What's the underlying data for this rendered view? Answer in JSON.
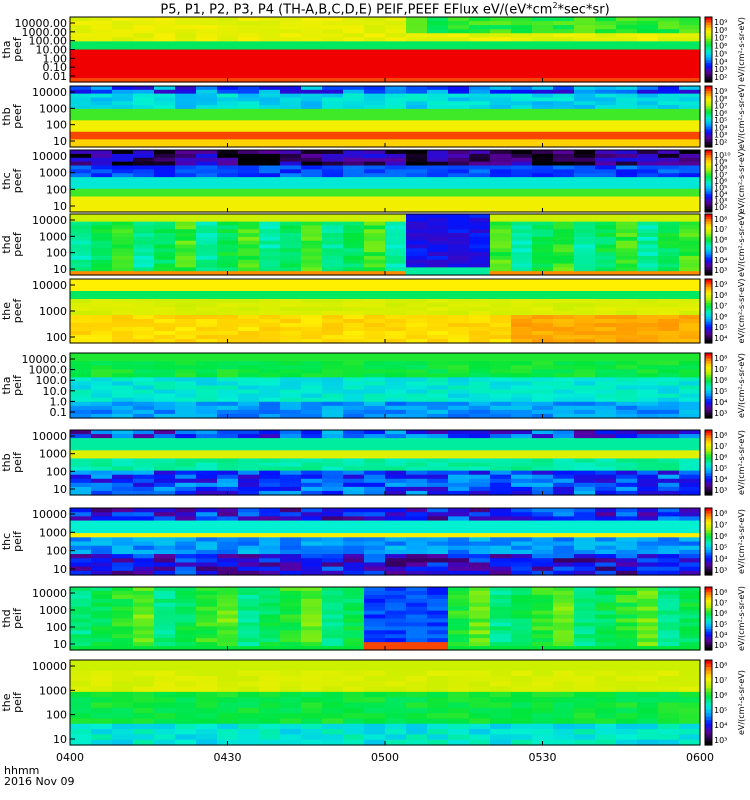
{
  "title_main": "P5, P1, P2, P3, P4 (TH-A,B,C,D,E) PEIF,PEEF EFlux eV/(eV*cm",
  "title_sup": "2",
  "title_end": "*sec*sr)",
  "x_label_top": "hhmm",
  "x_label_bottom": "2016 Nov 09",
  "colorbar_label": "[eV/(cm2-s-sr-eV)]",
  "chart_data": {
    "type": "heatmap",
    "x": {
      "ticks": [
        "0400",
        "0430",
        "0500",
        "0530",
        "0600"
      ]
    },
    "panels": [
      {
        "id": "tha-peef",
        "ylabel": [
          "tha",
          "peef"
        ],
        "yticks": [
          "10000.00",
          "1000.00",
          "100.00",
          "10.00",
          "1.00",
          "0.10",
          "0.01"
        ],
        "colorbar": [
          "10⁹",
          "10⁸",
          "10⁷",
          "10⁶",
          "10⁵",
          "10⁴",
          "10³",
          "10²"
        ],
        "cbar_label": "eV/(cm²-s-sr-eV)"
      },
      {
        "id": "thb-peef",
        "ylabel": [
          "thb",
          "peef"
        ],
        "yticks": [
          "10000",
          "1000",
          "100",
          "10"
        ],
        "colorbar": [
          "10⁹",
          "10⁸",
          "10⁷",
          "10⁶",
          "10⁵",
          "10⁴",
          "10³",
          "10²"
        ],
        "cbar_label": "eV/(cm²-s-sr-eV)"
      },
      {
        "id": "thc-peef",
        "ylabel": [
          "thc",
          "peef"
        ],
        "yticks": [
          "10000",
          "1000",
          "100",
          "10"
        ],
        "colorbar": [
          "10¹⁰",
          "10⁹",
          "10⁸",
          "10⁷",
          "10⁶",
          "10⁵",
          "10⁴",
          "10³",
          "10²"
        ],
        "cbar_label": "eV/(cm²-s-sr-eV)"
      },
      {
        "id": "thd-peef",
        "ylabel": [
          "thd",
          "peef"
        ],
        "yticks": [
          "10000",
          "1000",
          "100",
          "10"
        ],
        "colorbar": [
          "10⁸",
          "10⁷",
          "10⁶",
          "10⁵",
          "10⁴",
          "10³"
        ],
        "cbar_label": "eV/(cm²-s-sr-eV)"
      },
      {
        "id": "the-peef",
        "ylabel": [
          "the",
          "peef"
        ],
        "yticks": [
          "10000",
          "1000",
          "100"
        ],
        "colorbar": [
          "10⁹",
          "10⁸",
          "10⁷",
          "10⁶",
          "10⁵",
          "10⁴"
        ],
        "cbar_label": "eV/(cm²-s-sr-eV)"
      },
      {
        "id": "tha-peif",
        "ylabel": [
          "tha",
          "peif"
        ],
        "yticks": [
          "10000.0",
          "1000.0",
          "100.0",
          "10.0",
          "1.0",
          "0.1"
        ],
        "colorbar": [
          "10⁸",
          "10⁷",
          "10⁶",
          "10⁵",
          "10⁴",
          "10³"
        ],
        "cbar_label": "eV/(cm²-s-sr-eV)"
      },
      {
        "id": "thb-peif",
        "ylabel": [
          "thb",
          "peif"
        ],
        "yticks": [
          "10000",
          "1000",
          "100",
          "10"
        ],
        "colorbar": [
          "10⁸",
          "10⁷",
          "10⁶",
          "10⁵",
          "10⁴",
          "10³"
        ],
        "cbar_label": "eV/(cm²-s-sr-eV)"
      },
      {
        "id": "thc-peif",
        "ylabel": [
          "thc",
          "peif"
        ],
        "yticks": [
          "10000",
          "1000",
          "100",
          "10"
        ],
        "colorbar": [
          "10⁸",
          "10⁷",
          "10⁶",
          "10⁵",
          "10⁴",
          "10³"
        ],
        "cbar_label": "eV/(cm²-s-sr-eV)"
      },
      {
        "id": "thd-peif",
        "ylabel": [
          "thd",
          "peif"
        ],
        "yticks": [
          "10000",
          "1000",
          "100",
          "10"
        ],
        "colorbar": [
          "10⁸",
          "10⁷",
          "10⁶",
          "10⁵",
          "10⁴",
          "10³"
        ],
        "cbar_label": "eV/(cm²-s-sr-eV)"
      },
      {
        "id": "the-peif",
        "ylabel": [
          "the",
          "peif"
        ],
        "yticks": [
          "10000",
          "1000",
          "100",
          "10"
        ],
        "colorbar": [
          "10⁸",
          "10⁷",
          "10⁶",
          "10⁵",
          "10⁴",
          "10³"
        ],
        "cbar_label": "eV/(cm²-s-sr-eV)"
      }
    ]
  }
}
